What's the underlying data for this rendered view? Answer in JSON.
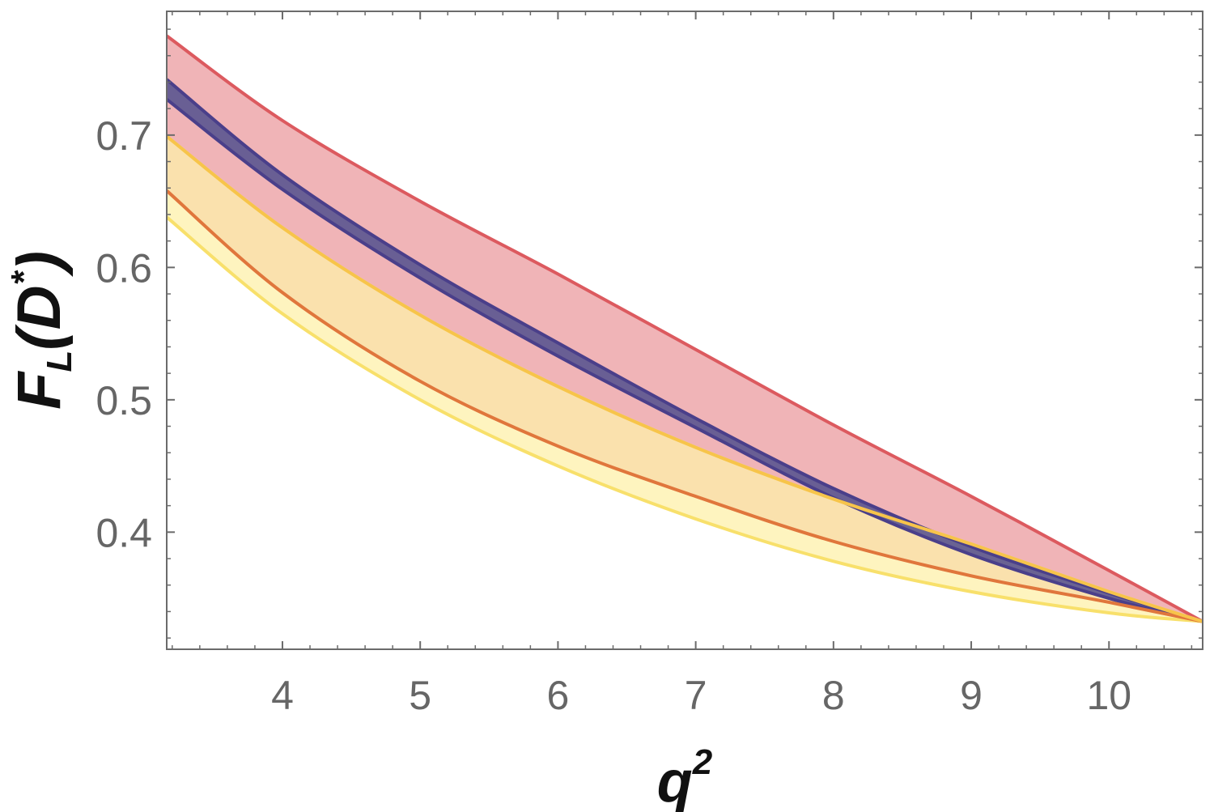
{
  "chart_data": {
    "type": "area",
    "xlabel": {
      "base": "q",
      "sup": "2"
    },
    "ylabel": {
      "base": "F",
      "sub": "L",
      "paren_open": "(",
      "inner": "D",
      "sup": "*",
      "paren_close": ")"
    },
    "xlim": [
      3.16,
      10.68
    ],
    "ylim": [
      0.3115,
      0.7935
    ],
    "x_ticks": [
      4,
      5,
      6,
      7,
      8,
      9,
      10
    ],
    "x_tick_labels": [
      "4",
      "5",
      "6",
      "7",
      "8",
      "9",
      "10"
    ],
    "y_ticks": [
      0.4,
      0.5,
      0.6,
      0.7
    ],
    "y_tick_labels": [
      "0.4",
      "0.5",
      "0.6",
      "0.7"
    ],
    "x_minor_step": 0.2,
    "y_minor_step": 0.02,
    "grid": false,
    "bands": [
      {
        "fill": "#ec9fa3",
        "stroke": "#dc5a5f",
        "opacity": 0.78,
        "x": [
          3.16,
          4,
          5,
          6,
          7,
          8,
          9,
          10,
          10.68
        ],
        "upper": [
          0.775,
          0.711,
          0.65,
          0.595,
          0.538,
          0.481,
          0.427,
          0.371,
          0.3325
        ],
        "lower": [
          0.658,
          0.581,
          0.514,
          0.465,
          0.427,
          0.393,
          0.367,
          0.347,
          0.3325
        ]
      },
      {
        "fill": "#fdf0a9",
        "stroke": "#f8e06b",
        "opacity": 0.75,
        "x": [
          3.16,
          4,
          5,
          6,
          7,
          8,
          9,
          10,
          10.68
        ],
        "upper": [
          0.699,
          0.63,
          0.564,
          0.51,
          0.464,
          0.425,
          0.391,
          0.355,
          0.3325
        ],
        "lower": [
          0.638,
          0.565,
          0.5,
          0.45,
          0.41,
          0.378,
          0.355,
          0.339,
          0.3325
        ]
      },
      {
        "fill": "#5a5590",
        "stroke": "#4a3f8a",
        "opacity": 0.9,
        "x": [
          3.16,
          4,
          5,
          6,
          7,
          8,
          9,
          10,
          10.68
        ],
        "upper": [
          0.742,
          0.67,
          0.602,
          0.543,
          0.486,
          0.433,
          0.389,
          0.354,
          0.3325
        ],
        "lower": [
          0.727,
          0.659,
          0.592,
          0.533,
          0.479,
          0.426,
          0.383,
          0.35,
          0.3325
        ]
      }
    ],
    "lines": [
      {
        "color": "#e0763c",
        "x": [
          3.16,
          4,
          5,
          6,
          7,
          8,
          9,
          10,
          10.68
        ],
        "y": [
          0.658,
          0.581,
          0.514,
          0.465,
          0.427,
          0.393,
          0.367,
          0.347,
          0.3325
        ]
      },
      {
        "color": "#f7c44a",
        "x": [
          3.16,
          4,
          5,
          6,
          7,
          8,
          9,
          10,
          10.68
        ],
        "y": [
          0.699,
          0.63,
          0.564,
          0.51,
          0.464,
          0.425,
          0.391,
          0.355,
          0.3325
        ]
      }
    ]
  }
}
